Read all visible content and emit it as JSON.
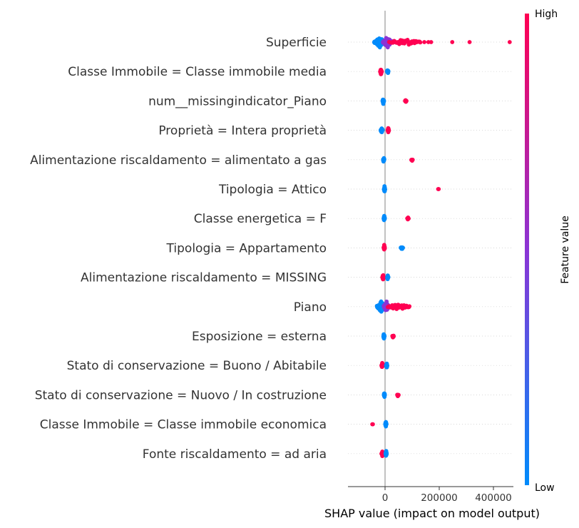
{
  "chart_data": {
    "type": "beeswarm",
    "title": "",
    "xlabel": "SHAP value (impact on model output)",
    "ylabel": "",
    "xlim": [
      -95000,
      470000
    ],
    "xticks": [
      0,
      200000,
      400000
    ],
    "xtick_labels": [
      "0",
      "200000",
      "400000"
    ],
    "zero_line": true,
    "grid": "dotted horizontal row lines",
    "colors": {
      "low": "#008bfb",
      "mid": "#8b34d5",
      "high": "#ff0052",
      "zero_line": "#999999"
    },
    "colorbar": {
      "label": "Feature value",
      "high_label": "High",
      "low_label": "Low"
    },
    "features": [
      {
        "name": "Superficie",
        "groups": [
          {
            "min": -40000,
            "max": 0,
            "count": 70,
            "spread": 0.9,
            "color": "low"
          },
          {
            "min": -8000,
            "max": 25000,
            "count": 45,
            "spread": 0.9,
            "color": "mid"
          },
          {
            "min": 15000,
            "max": 130000,
            "count": 50,
            "spread": 0.55,
            "color": "high"
          }
        ],
        "points": [
          {
            "x": 145000,
            "color": "high"
          },
          {
            "x": 160000,
            "color": "high"
          },
          {
            "x": 170000,
            "color": "high"
          },
          {
            "x": 248000,
            "color": "high"
          },
          {
            "x": 312000,
            "color": "high"
          },
          {
            "x": 460000,
            "color": "high"
          }
        ]
      },
      {
        "name": "Classe Immobile = Classe immobile media",
        "groups": [
          {
            "min": -18000,
            "max": -12000,
            "count": 24,
            "spread": 0.5,
            "color": "high"
          },
          {
            "min": 8000,
            "max": 12000,
            "count": 24,
            "spread": 0.5,
            "color": "low"
          }
        ],
        "points": []
      },
      {
        "name": "num__missingindicator_Piano",
        "groups": [
          {
            "min": -9000,
            "max": -4000,
            "count": 24,
            "spread": 0.5,
            "color": "low"
          },
          {
            "min": 74000,
            "max": 79000,
            "count": 8,
            "spread": 0.25,
            "color": "high"
          }
        ],
        "points": []
      },
      {
        "name": "Proprietà = Intera proprietà ",
        "groups": [
          {
            "min": -16000,
            "max": -9000,
            "count": 24,
            "spread": 0.5,
            "color": "low"
          },
          {
            "min": 10000,
            "max": 14000,
            "count": 24,
            "spread": 0.5,
            "color": "high"
          }
        ],
        "points": []
      },
      {
        "name": "Alimentazione riscaldamento =  alimentato a gas",
        "groups": [
          {
            "min": -7000,
            "max": -3000,
            "count": 24,
            "spread": 0.5,
            "color": "low"
          },
          {
            "min": 97000,
            "max": 102000,
            "count": 6,
            "spread": 0.2,
            "color": "high"
          }
        ],
        "points": []
      },
      {
        "name": "Tipologia = Attico",
        "groups": [
          {
            "min": -4000,
            "max": 0,
            "count": 24,
            "spread": 0.5,
            "color": "low"
          }
        ],
        "points": [
          {
            "x": 196000,
            "color": "high"
          },
          {
            "x": 198000,
            "color": "high"
          }
        ]
      },
      {
        "name": "Classe energetica = F",
        "groups": [
          {
            "min": -5000,
            "max": -1000,
            "count": 24,
            "spread": 0.5,
            "color": "low"
          },
          {
            "min": 82000,
            "max": 87000,
            "count": 6,
            "spread": 0.2,
            "color": "high"
          }
        ],
        "points": []
      },
      {
        "name": "Tipologia = Appartamento",
        "groups": [
          {
            "min": -5000,
            "max": -1000,
            "count": 24,
            "spread": 0.5,
            "color": "high"
          },
          {
            "min": 58000,
            "max": 66000,
            "count": 10,
            "spread": 0.25,
            "color": "low"
          }
        ],
        "points": []
      },
      {
        "name": "Alimentazione riscaldamento =   MISSING  ",
        "groups": [
          {
            "min": -10000,
            "max": -4000,
            "count": 24,
            "spread": 0.5,
            "color": "high"
          },
          {
            "min": 8000,
            "max": 12000,
            "count": 14,
            "spread": 0.4,
            "color": "low"
          }
        ],
        "points": []
      },
      {
        "name": "Piano",
        "groups": [
          {
            "min": -30000,
            "max": 0,
            "count": 55,
            "spread": 0.9,
            "color": "low"
          },
          {
            "min": -5000,
            "max": 15000,
            "count": 40,
            "spread": 0.9,
            "color": "mid"
          },
          {
            "min": 10000,
            "max": 90000,
            "count": 45,
            "spread": 0.55,
            "color": "high"
          }
        ],
        "points": []
      },
      {
        "name": "Esposizione = esterna",
        "groups": [
          {
            "min": -6000,
            "max": -2000,
            "count": 24,
            "spread": 0.5,
            "color": "low"
          },
          {
            "min": 27000,
            "max": 32000,
            "count": 8,
            "spread": 0.3,
            "color": "high"
          }
        ],
        "points": []
      },
      {
        "name": "Stato di conservazione = Buono / Abitabile",
        "groups": [
          {
            "min": -13000,
            "max": -7000,
            "count": 24,
            "spread": 0.5,
            "color": "high"
          },
          {
            "min": 4000,
            "max": 8000,
            "count": 20,
            "spread": 0.5,
            "color": "low"
          }
        ],
        "points": []
      },
      {
        "name": "Stato di conservazione = Nuovo / In costruzione",
        "groups": [
          {
            "min": -4000,
            "max": -1000,
            "count": 24,
            "spread": 0.5,
            "color": "low"
          },
          {
            "min": 45000,
            "max": 50000,
            "count": 8,
            "spread": 0.3,
            "color": "high"
          }
        ],
        "points": []
      },
      {
        "name": "Classe Immobile = Classe immobile economica",
        "groups": [
          {
            "min": 1000,
            "max": 5000,
            "count": 24,
            "spread": 0.5,
            "color": "low"
          }
        ],
        "points": [
          {
            "x": -47000,
            "color": "high"
          },
          {
            "x": -45000,
            "color": "high"
          }
        ]
      },
      {
        "name": "Fonte riscaldamento = ad aria",
        "groups": [
          {
            "min": -13000,
            "max": -7000,
            "count": 24,
            "spread": 0.5,
            "color": "high"
          },
          {
            "min": 2000,
            "max": 6000,
            "count": 24,
            "spread": 0.5,
            "color": "low"
          }
        ],
        "points": []
      }
    ]
  }
}
